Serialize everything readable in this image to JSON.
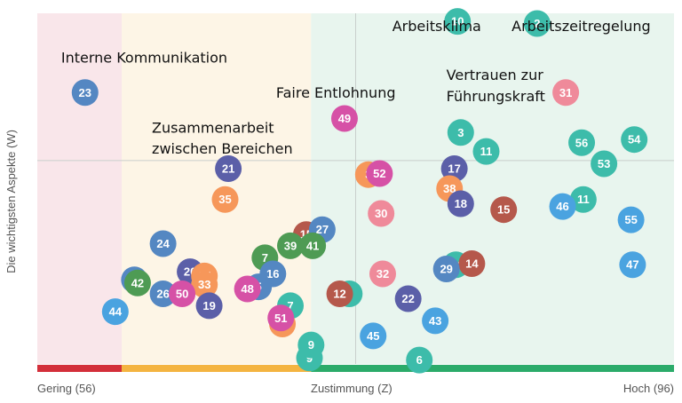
{
  "chart_data": {
    "type": "scatter",
    "ylabel": "Die wichtigsten Aspekte (W)",
    "x_tick_labels": {
      "low": "Gering (56)",
      "mid": "Zustimmung (Z)",
      "high": "Hoch (96)"
    },
    "xlim": [
      56,
      96
    ],
    "ylim": [
      0,
      100
    ],
    "zone_colors": {
      "low_bg": "#f9e6ea",
      "mid_bg": "#fdf5e6",
      "high_bg": "#e8f5ee",
      "low_bar": "#d32f3a",
      "mid_bar": "#f4b441",
      "high_bar": "#2bab6a"
    },
    "annotations": [
      {
        "text": "Interne Kommunikation",
        "x": 57.5,
        "y": 86
      },
      {
        "text": "Zusammenarbeit",
        "x": 63.2,
        "y": 66
      },
      {
        "text": "zwischen Bereichen",
        "x": 63.2,
        "y": 60
      },
      {
        "text": "Faire Entlohnung",
        "x": 71.0,
        "y": 76
      },
      {
        "text": "Arbeitsklima",
        "x": 78.3,
        "y": 95
      },
      {
        "text": "Arbeitszeitregelung",
        "x": 85.8,
        "y": 95
      },
      {
        "text": "Vertrauen zur",
        "x": 81.7,
        "y": 81
      },
      {
        "text": "Führungskraft",
        "x": 81.7,
        "y": 75
      }
    ],
    "points": [
      {
        "label": "10",
        "x": 82.4,
        "y": 97.7,
        "color": "#3dbcaa"
      },
      {
        "label": "2",
        "x": 87.4,
        "y": 97.1,
        "color": "#3dbcaa"
      },
      {
        "label": "23",
        "x": 59.0,
        "y": 77.4,
        "color": "#5487c2"
      },
      {
        "label": "31",
        "x": 89.2,
        "y": 77.4,
        "color": "#ef8a9a"
      },
      {
        "label": "49",
        "x": 75.3,
        "y": 70.0,
        "color": "#d651a6"
      },
      {
        "label": "3",
        "x": 82.6,
        "y": 66.0,
        "color": "#3dbcaa"
      },
      {
        "label": "56",
        "x": 90.2,
        "y": 63.1,
        "color": "#3dbcaa"
      },
      {
        "label": "54",
        "x": 93.5,
        "y": 64.0,
        "color": "#3dbcaa"
      },
      {
        "label": "11",
        "x": 84.2,
        "y": 60.6,
        "color": "#3dbcaa"
      },
      {
        "label": "53",
        "x": 91.6,
        "y": 57.1,
        "color": "#3dbcaa"
      },
      {
        "label": "21",
        "x": 68.0,
        "y": 55.7,
        "color": "#5b5fa8"
      },
      {
        "label": "17",
        "x": 82.2,
        "y": 55.7,
        "color": "#5b5fa8"
      },
      {
        "label": "3",
        "x": 76.8,
        "y": 54.0,
        "color": "#f6975a"
      },
      {
        "label": "52",
        "x": 77.5,
        "y": 54.3,
        "color": "#d651a6"
      },
      {
        "label": "38",
        "x": 81.9,
        "y": 50.0,
        "color": "#f6975a"
      },
      {
        "label": "35",
        "x": 67.8,
        "y": 46.9,
        "color": "#f6975a"
      },
      {
        "label": "18",
        "x": 82.6,
        "y": 45.7,
        "color": "#5b5fa8"
      },
      {
        "label": "11",
        "x": 90.3,
        "y": 46.9,
        "color": "#3dbcaa"
      },
      {
        "label": "46",
        "x": 89.0,
        "y": 44.9,
        "color": "#4aa3e0"
      },
      {
        "label": "15",
        "x": 85.3,
        "y": 44.0,
        "color": "#b5584b"
      },
      {
        "label": "30",
        "x": 77.6,
        "y": 42.9,
        "color": "#ef8a9a"
      },
      {
        "label": "55",
        "x": 93.3,
        "y": 41.1,
        "color": "#4aa3e0"
      },
      {
        "label": "15",
        "x": 72.9,
        "y": 36.9,
        "color": "#b5584b"
      },
      {
        "label": "27",
        "x": 73.9,
        "y": 38.3,
        "color": "#5487c2"
      },
      {
        "label": "24",
        "x": 63.9,
        "y": 34.3,
        "color": "#5487c2"
      },
      {
        "label": "39",
        "x": 71.9,
        "y": 33.7,
        "color": "#4e9b54"
      },
      {
        "label": "41",
        "x": 73.3,
        "y": 33.7,
        "color": "#4e9b54"
      },
      {
        "label": "7",
        "x": 70.3,
        "y": 30.3,
        "color": "#4e9b54"
      },
      {
        "label": "14",
        "x": 82.3,
        "y": 28.3,
        "color": "#3dbcaa"
      },
      {
        "label": "14",
        "x": 83.3,
        "y": 28.6,
        "color": "#b5584b"
      },
      {
        "label": "47",
        "x": 93.4,
        "y": 28.3,
        "color": "#4aa3e0"
      },
      {
        "label": "20",
        "x": 65.6,
        "y": 26.3,
        "color": "#5b5fa8"
      },
      {
        "label": "29",
        "x": 81.7,
        "y": 27.1,
        "color": "#5487c2"
      },
      {
        "label": "16",
        "x": 70.8,
        "y": 25.7,
        "color": "#5487c2"
      },
      {
        "label": "32",
        "x": 77.7,
        "y": 25.7,
        "color": "#ef8a9a"
      },
      {
        "label": "42",
        "x": 62.1,
        "y": 24.0,
        "color": "#5487c2"
      },
      {
        "label": "42",
        "x": 62.3,
        "y": 23.1,
        "color": "#4e9b54"
      },
      {
        "label": "37",
        "x": 66.5,
        "y": 25.1,
        "color": "#f6975a"
      },
      {
        "label": "33",
        "x": 66.5,
        "y": 22.6,
        "color": "#f6975a"
      },
      {
        "label": "5",
        "x": 69.9,
        "y": 22.0,
        "color": "#5487c2"
      },
      {
        "label": "48",
        "x": 69.2,
        "y": 21.4,
        "color": "#d651a6"
      },
      {
        "label": "26",
        "x": 63.9,
        "y": 20.0,
        "color": "#5487c2"
      },
      {
        "label": "50",
        "x": 65.1,
        "y": 20.0,
        "color": "#d651a6"
      },
      {
        "label": "19",
        "x": 66.8,
        "y": 16.6,
        "color": "#5b5fa8"
      },
      {
        "label": "5",
        "x": 75.6,
        "y": 20.0,
        "color": "#3dbcaa"
      },
      {
        "label": "12",
        "x": 75.0,
        "y": 20.0,
        "color": "#b5584b"
      },
      {
        "label": "22",
        "x": 79.3,
        "y": 18.6,
        "color": "#5b5fa8"
      },
      {
        "label": "7",
        "x": 71.9,
        "y": 16.6,
        "color": "#3dbcaa"
      },
      {
        "label": "44",
        "x": 60.9,
        "y": 14.9,
        "color": "#4aa3e0"
      },
      {
        "label": "7",
        "x": 71.4,
        "y": 11.4,
        "color": "#f6975a"
      },
      {
        "label": "51",
        "x": 71.3,
        "y": 13.1,
        "color": "#d651a6"
      },
      {
        "label": "43",
        "x": 81.0,
        "y": 12.3,
        "color": "#4aa3e0"
      },
      {
        "label": "45",
        "x": 77.1,
        "y": 8.0,
        "color": "#4aa3e0"
      },
      {
        "label": "9",
        "x": 73.1,
        "y": 1.7,
        "color": "#3dbcaa"
      },
      {
        "label": "9",
        "x": 73.2,
        "y": 5.4,
        "color": "#3dbcaa"
      },
      {
        "label": "6",
        "x": 80.0,
        "y": 1.1,
        "color": "#3dbcaa"
      }
    ],
    "zones": [
      {
        "name": "",
        "from": 56,
        "to": 61.3
      },
      {
        "name": "",
        "from": 61.3,
        "to": 73.2
      },
      {
        "name": "",
        "from": 73.2,
        "to": 96
      }
    ],
    "crosshair": {
      "x": 76.0,
      "y": 58.0
    },
    "grid": false
  }
}
